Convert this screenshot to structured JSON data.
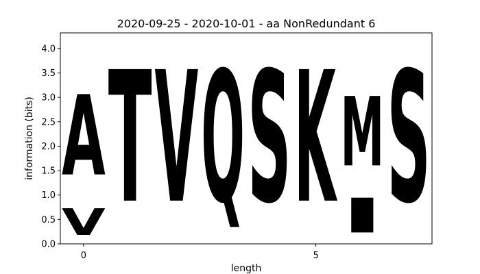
{
  "chart_data": {
    "type": "sequence-logo",
    "title": "2020-09-25 - 2020-10-01 - aa NonRedundant 6",
    "xlabel": "length",
    "ylabel": "information (bits)",
    "ylim": [
      0,
      4.32
    ],
    "xlim": [
      -0.5,
      7.5
    ],
    "x_ticks": [
      0,
      5
    ],
    "y_ticks": [
      0.0,
      0.5,
      1.0,
      1.5,
      2.0,
      2.5,
      3.0,
      3.5,
      4.0
    ],
    "grid": false,
    "positions": [
      {
        "x": 0,
        "letters": [
          {
            "char": "V",
            "bottom": 0.0,
            "top": 0.88,
            "color": "#000000"
          },
          {
            "char": "A",
            "bottom": 0.88,
            "top": 3.52,
            "color": "#000000"
          }
        ]
      },
      {
        "x": 1,
        "letters": [
          {
            "char": "T",
            "bottom": 0.0,
            "top": 4.32,
            "color": "#22D62D"
          }
        ]
      },
      {
        "x": 2,
        "letters": [
          {
            "char": "V",
            "bottom": 0.0,
            "top": 4.32,
            "color": "#000000"
          }
        ]
      },
      {
        "x": 3,
        "letters": [
          {
            "char": "Q",
            "bottom": 0.0,
            "top": 4.32,
            "color": "#D61FC3"
          }
        ]
      },
      {
        "x": 4,
        "letters": [
          {
            "char": "S",
            "bottom": 0.0,
            "top": 4.32,
            "color": "#22D62D"
          }
        ]
      },
      {
        "x": 5,
        "letters": [
          {
            "char": "K",
            "bottom": 0.0,
            "top": 4.32,
            "color": "#0A19C0"
          }
        ]
      },
      {
        "x": 6,
        "letters": [
          {
            "char": "I",
            "bottom": 0.0,
            "top": 1.14,
            "color": "#000000"
          },
          {
            "char": "M",
            "bottom": 1.14,
            "top": 3.42,
            "color": "#000000"
          }
        ]
      },
      {
        "x": 7,
        "letters": [
          {
            "char": "S",
            "bottom": 0.0,
            "top": 4.32,
            "color": "#22D62D"
          }
        ]
      }
    ]
  }
}
